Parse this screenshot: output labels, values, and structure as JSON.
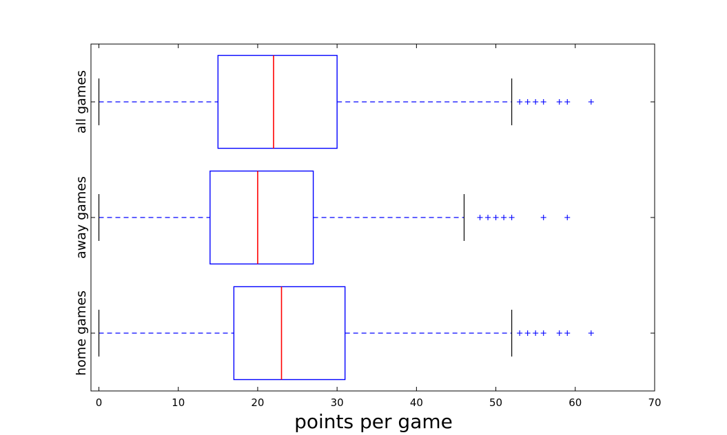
{
  "chart_data": {
    "type": "boxplot",
    "orientation": "horizontal",
    "xlabel": "points per game",
    "ylabel": "",
    "xlim": [
      -1,
      70
    ],
    "xticks": [
      0,
      10,
      20,
      30,
      40,
      50,
      60,
      70
    ],
    "grid": false,
    "colors": {
      "box": "#0000ff",
      "median": "#ff0000",
      "whisker": "#0000ff",
      "cap": "#000000",
      "flier": "#0000ff"
    },
    "groups": [
      {
        "label": "all games",
        "whisker_low": 0,
        "q1": 15,
        "median": 22,
        "q3": 30,
        "whisker_high": 52,
        "fliers": [
          53,
          54,
          55,
          56,
          58,
          59,
          62
        ]
      },
      {
        "label": "away games",
        "whisker_low": 0,
        "q1": 14,
        "median": 20,
        "q3": 27,
        "whisker_high": 46,
        "fliers": [
          48,
          49,
          50,
          51,
          52,
          56,
          59
        ]
      },
      {
        "label": "home games",
        "whisker_low": 0,
        "q1": 17,
        "median": 23,
        "q3": 31,
        "whisker_high": 52,
        "fliers": [
          53,
          54,
          55,
          56,
          58,
          59,
          62
        ]
      }
    ]
  }
}
